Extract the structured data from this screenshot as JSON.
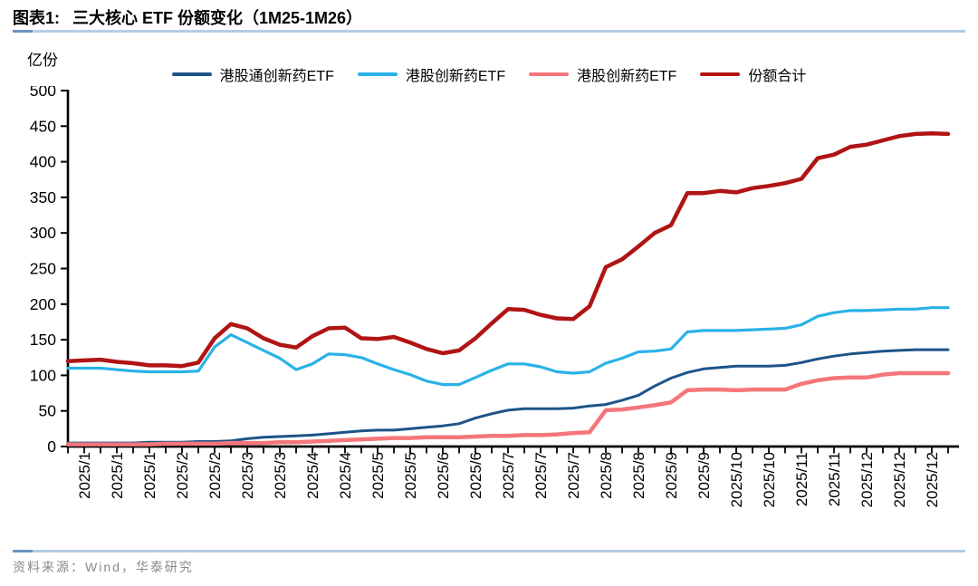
{
  "header": {
    "title_prefix": "图表1:",
    "title": "三大核心 ETF 份额变化（1M25-1M26）"
  },
  "footer": {
    "source": "资料来源：Wind，华泰研究"
  },
  "colors": {
    "axis": "#000000",
    "rule": "#b5cbe3",
    "rule_accent": "#6b94c0",
    "footer_text": "#8a8a8a"
  },
  "chart_data": {
    "type": "line",
    "unit_label": "亿份",
    "ylim": [
      0,
      500
    ],
    "y_ticks": [
      0,
      50,
      100,
      150,
      200,
      250,
      300,
      350,
      400,
      450,
      500
    ],
    "grid": false,
    "legend_position": "top",
    "ticks_per_label": 2,
    "x_tick_labels": [
      "2025/1",
      "2025/1",
      "2025/1",
      "2025/2",
      "2025/2",
      "2025/3",
      "2025/3",
      "2025/4",
      "2025/4",
      "2025/5",
      "2025/5",
      "2025/6",
      "2025/6",
      "2025/7",
      "2025/7",
      "2025/7",
      "2025/8",
      "2025/8",
      "2025/9",
      "2025/9",
      "2025/10",
      "2025/10",
      "2025/11",
      "2025/11",
      "2025/12",
      "2025/12",
      "2025/12"
    ],
    "series": [
      {
        "name": "港股通创新药ETF",
        "color": "#1d5487",
        "width": 3,
        "values": [
          5,
          5,
          5,
          5,
          5,
          6,
          6,
          6,
          7,
          7,
          8,
          11,
          13,
          14,
          15,
          16,
          18,
          20,
          22,
          23,
          23,
          25,
          27,
          29,
          32,
          40,
          46,
          51,
          53,
          53,
          53,
          54,
          57,
          59,
          65,
          72,
          85,
          96,
          104,
          109,
          111,
          113,
          113,
          113,
          114,
          118,
          123,
          127,
          130,
          132,
          134,
          135,
          136,
          136,
          136
        ]
      },
      {
        "name": "港股创新药ETF",
        "color": "#29b2e8",
        "width": 3.2,
        "values": [
          110,
          110,
          110,
          108,
          106,
          105,
          105,
          105,
          106,
          140,
          157,
          146,
          135,
          124,
          108,
          116,
          130,
          129,
          125,
          116,
          108,
          101,
          92,
          87,
          87,
          97,
          107,
          116,
          116,
          112,
          105,
          103,
          105,
          117,
          124,
          133,
          134,
          137,
          161,
          163,
          163,
          163,
          164,
          165,
          166,
          171,
          183,
          188,
          191,
          191,
          192,
          193,
          193,
          195,
          195
        ]
      },
      {
        "name": "港股创新药ETF",
        "color": "#f4767a",
        "width": 4.5,
        "values": [
          3,
          3,
          3,
          3,
          3,
          3,
          4,
          4,
          4,
          4,
          5,
          5,
          5,
          6,
          6,
          7,
          8,
          9,
          10,
          11,
          12,
          12,
          13,
          13,
          13,
          14,
          15,
          15,
          16,
          16,
          17,
          19,
          20,
          51,
          52,
          55,
          58,
          62,
          79,
          80,
          80,
          79,
          80,
          80,
          80,
          88,
          93,
          96,
          97,
          97,
          101,
          103,
          103,
          103,
          103
        ]
      },
      {
        "name": "份额合计",
        "color": "#b01414",
        "width": 4.5,
        "values": [
          120,
          121,
          122,
          119,
          117,
          114,
          114,
          113,
          118,
          152,
          172,
          166,
          152,
          143,
          139,
          155,
          166,
          167,
          152,
          151,
          154,
          146,
          137,
          131,
          135,
          152,
          173,
          193,
          192,
          185,
          180,
          179,
          197,
          252,
          263,
          281,
          300,
          311,
          356,
          356,
          359,
          357,
          363,
          366,
          370,
          376,
          405,
          410,
          421,
          424,
          430,
          436,
          439,
          440,
          439
        ]
      }
    ]
  }
}
